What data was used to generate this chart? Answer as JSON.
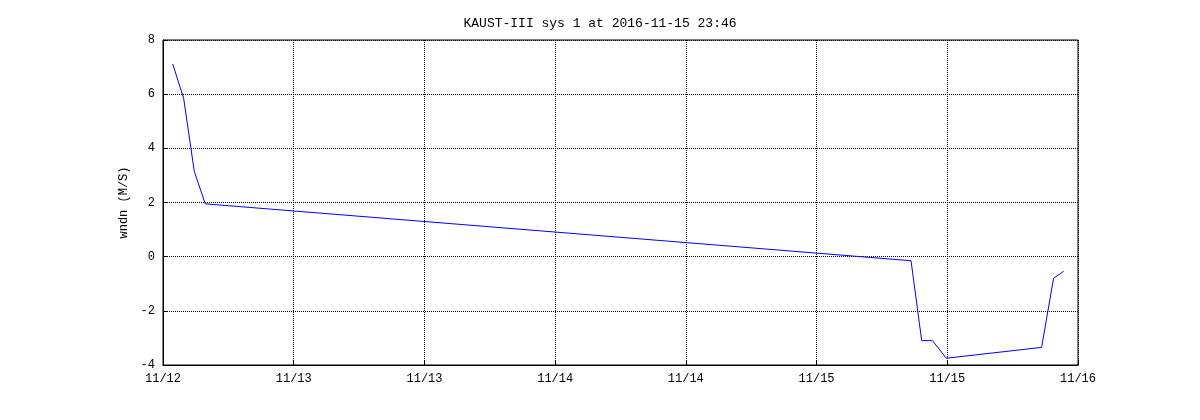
{
  "chart_data": {
    "type": "line",
    "title": "KAUST-III sys 1 at 2016-11-15 23:46",
    "ylabel": "wndn (M/S)",
    "x": [
      "2016-11-12T01:02",
      "2016-11-12T02:10",
      "2016-11-12T03:17",
      "2016-11-12T04:26",
      "2016-11-15T06:29",
      "2016-11-15T07:36",
      "2016-11-15T08:44",
      "2016-11-15T10:11",
      "2016-11-15T20:11",
      "2016-11-15T21:26",
      "2016-11-15T22:28"
    ],
    "series": [
      {
        "color": "#0000ff",
        "values": [
          7.1,
          5.85,
          3.15,
          1.95,
          -0.15,
          -3.1,
          -3.1,
          -3.75,
          -3.35,
          -0.8,
          -0.55
        ]
      }
    ],
    "xlim": [
      "2016-11-12T00:00",
      "2016-11-16T00:00"
    ],
    "xticks": [
      {
        "value": "2016-11-12T00:00",
        "label": "11/12"
      },
      {
        "value": "2016-11-12T13:43",
        "label": "11/13"
      },
      {
        "value": "2016-11-13T03:26",
        "label": "11/13"
      },
      {
        "value": "2016-11-13T17:09",
        "label": "11/14"
      },
      {
        "value": "2016-11-14T06:51",
        "label": "11/14"
      },
      {
        "value": "2016-11-14T20:34",
        "label": "11/15"
      },
      {
        "value": "2016-11-15T10:17",
        "label": "11/15"
      },
      {
        "value": "2016-11-16T00:00",
        "label": "11/16"
      }
    ],
    "ylim": [
      -4,
      8
    ],
    "yticks": [
      -4,
      -2,
      0,
      2,
      4,
      6,
      8
    ],
    "grid": true,
    "line_style": "solid",
    "marker": "none"
  }
}
